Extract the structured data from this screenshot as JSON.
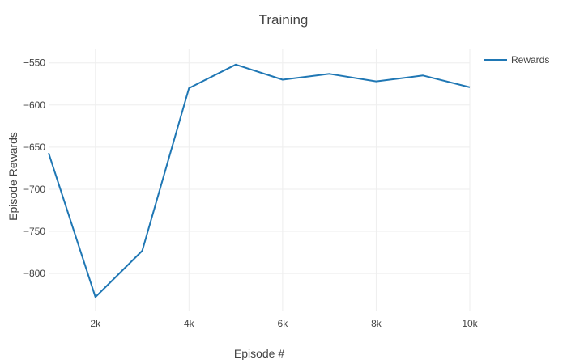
{
  "chart_data": {
    "type": "line",
    "title": "Training",
    "xlabel": "Episode #",
    "ylabel": "Episode Rewards",
    "xlim": [
      1000,
      10000
    ],
    "ylim": [
      -845,
      -533
    ],
    "x_ticks": [
      2000,
      4000,
      6000,
      8000,
      10000
    ],
    "x_tick_labels": [
      "2k",
      "4k",
      "6k",
      "8k",
      "10k"
    ],
    "y_ticks": [
      -800,
      -750,
      -700,
      -650,
      -600,
      -550
    ],
    "y_tick_labels": [
      "−800",
      "−750",
      "−700",
      "−650",
      "−600",
      "−550"
    ],
    "grid": true,
    "legend_position": "top-right",
    "x": [
      1000,
      2000,
      3000,
      4000,
      5000,
      6000,
      7000,
      8000,
      9000,
      10000
    ],
    "series": [
      {
        "name": "Rewards",
        "color": "#1f77b4",
        "values": [
          -657,
          -828,
          -773,
          -580,
          -552,
          -570,
          -563,
          -572,
          -565,
          -579
        ]
      }
    ]
  }
}
